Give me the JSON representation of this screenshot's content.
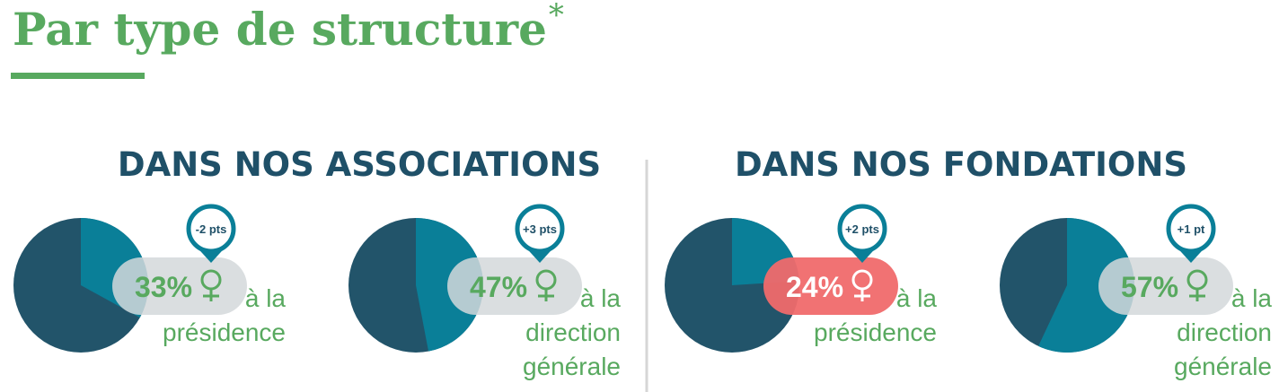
{
  "header": {
    "title": "Par type de structure",
    "asterisk": "*"
  },
  "colors": {
    "accent": "#58a95f",
    "dark": "#22546a",
    "light": "#0a7f98",
    "pill": "#d4d8db",
    "highlight": "#f06a6c"
  },
  "sections": [
    {
      "heading": "DANS NOS ASSOCIATIONS",
      "items": [
        {
          "value": 33,
          "value_label": "33%",
          "change": "-2 pts",
          "caption": [
            "à la",
            "présidence"
          ],
          "highlight": false
        },
        {
          "value": 47,
          "value_label": "47%",
          "change": "+3 pts",
          "caption": [
            "à la",
            "direction",
            "générale"
          ],
          "highlight": false
        }
      ]
    },
    {
      "heading": "DANS NOS FONDATIONS",
      "items": [
        {
          "value": 24,
          "value_label": "24%",
          "change": "+2 pts",
          "caption": [
            "à la",
            "présidence"
          ],
          "highlight": true
        },
        {
          "value": 57,
          "value_label": "57%",
          "change": "+1 pt",
          "caption": [
            "à la",
            "direction",
            "générale"
          ],
          "highlight": false
        }
      ]
    }
  ]
}
